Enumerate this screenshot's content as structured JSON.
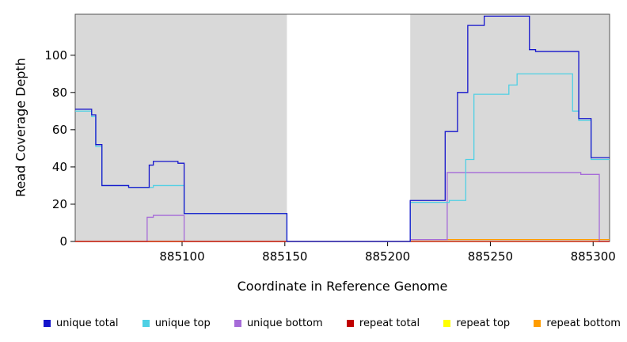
{
  "chart_data": {
    "type": "line",
    "subtype": "step",
    "title": "",
    "xlabel": "Coordinate in Reference Genome",
    "ylabel": "Read Coverage Depth",
    "xlim": [
      885048,
      885308
    ],
    "ylim": [
      0,
      122
    ],
    "x_ticks": [
      885100,
      885150,
      885200,
      885250,
      885300
    ],
    "y_ticks": [
      0,
      20,
      40,
      60,
      80,
      100
    ],
    "grid": false,
    "legend_position": "bottom",
    "panel_background": "#ffffff",
    "shaded_region_color": "#d9d9d9",
    "border_color": "#545454",
    "shaded_regions": [
      {
        "from": 885048,
        "to": 885151
      },
      {
        "from": 885211,
        "to": 885308
      }
    ],
    "series": [
      {
        "name": "repeat top",
        "color": "#FFFF00",
        "points": [
          [
            885048,
            0
          ],
          [
            885308,
            0
          ]
        ]
      },
      {
        "name": "repeat bottom",
        "color": "#FF9D00",
        "points": [
          [
            885048,
            0
          ],
          [
            885211,
            1
          ],
          [
            885308,
            1
          ]
        ]
      },
      {
        "name": "unique bottom",
        "color": "#A66BD8",
        "points": [
          [
            885048,
            0
          ],
          [
            885083,
            13
          ],
          [
            885086,
            14
          ],
          [
            885101,
            0
          ],
          [
            885211,
            1
          ],
          [
            885229,
            37
          ],
          [
            885294,
            36
          ],
          [
            885303,
            0
          ],
          [
            885308,
            0
          ]
        ]
      },
      {
        "name": "repeat total",
        "color": "#C00000",
        "points": [
          [
            885048,
            0
          ],
          [
            885308,
            0
          ]
        ]
      },
      {
        "name": "unique top",
        "color": "#4FD0E4",
        "points": [
          [
            885048,
            70
          ],
          [
            885056,
            67
          ],
          [
            885058,
            51
          ],
          [
            885061,
            30
          ],
          [
            885074,
            29
          ],
          [
            885086,
            30
          ],
          [
            885101,
            15
          ],
          [
            885151,
            0
          ],
          [
            885211,
            21
          ],
          [
            885230,
            22
          ],
          [
            885238,
            44
          ],
          [
            885242,
            79
          ],
          [
            885259,
            84
          ],
          [
            885263,
            90
          ],
          [
            885290,
            70
          ],
          [
            885293,
            65
          ],
          [
            885299,
            44
          ],
          [
            885308,
            44
          ]
        ]
      },
      {
        "name": "unique total",
        "color": "#1414CC",
        "points": [
          [
            885048,
            71
          ],
          [
            885056,
            68
          ],
          [
            885058,
            52
          ],
          [
            885061,
            30
          ],
          [
            885074,
            29
          ],
          [
            885084,
            41
          ],
          [
            885086,
            43
          ],
          [
            885098,
            42
          ],
          [
            885101,
            15
          ],
          [
            885151,
            0
          ],
          [
            885211,
            22
          ],
          [
            885228,
            59
          ],
          [
            885234,
            80
          ],
          [
            885239,
            116
          ],
          [
            885247,
            121
          ],
          [
            885269,
            103
          ],
          [
            885272,
            102
          ],
          [
            885293,
            66
          ],
          [
            885299,
            45
          ],
          [
            885308,
            45
          ]
        ]
      }
    ],
    "legend": [
      {
        "label": "unique total",
        "color": "#1414CC"
      },
      {
        "label": "unique top",
        "color": "#4FD0E4"
      },
      {
        "label": "unique bottom",
        "color": "#A66BD8"
      },
      {
        "label": "repeat total",
        "color": "#C00000"
      },
      {
        "label": "repeat top",
        "color": "#FFFF00"
      },
      {
        "label": "repeat bottom",
        "color": "#FF9D00"
      }
    ]
  }
}
